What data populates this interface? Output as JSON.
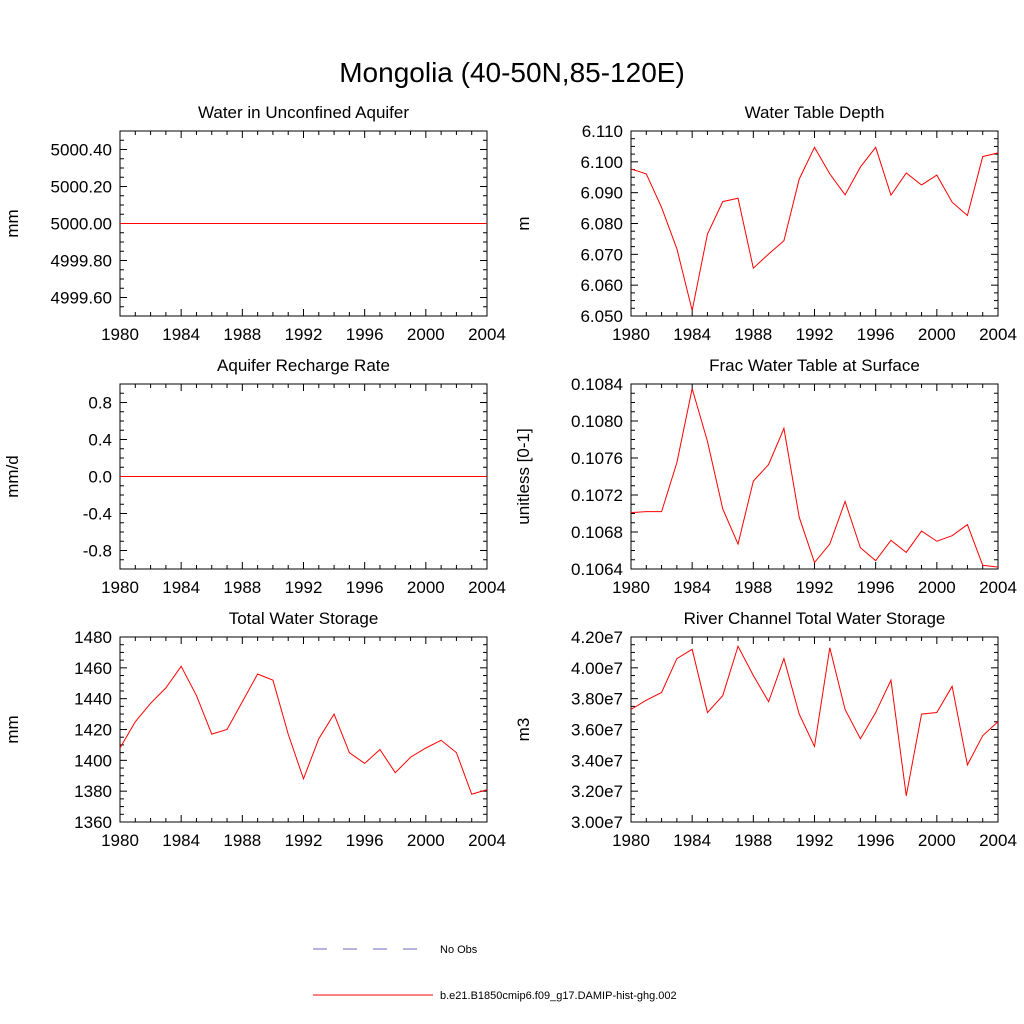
{
  "page_title": "Mongolia (40-50N,85-120E)",
  "legend": {
    "placement": "bottom-center",
    "entries": [
      {
        "label": "No Obs",
        "color": "#6c6cb8",
        "style": "dashed"
      },
      {
        "label": "b.e21.B1850cmip6.f09_g17.DAMIP-hist-ghg.002",
        "color": "#ff0000",
        "style": "solid"
      }
    ]
  },
  "chart_data": [
    {
      "type": "line",
      "title": "Water in Unconfined Aquifer",
      "xlabel": "",
      "ylabel": "mm",
      "xlim": [
        1980,
        2004
      ],
      "ylim": [
        4999.5,
        5000.5
      ],
      "xticks": [
        "1980",
        "1984",
        "1988",
        "1992",
        "1996",
        "2000",
        "2004"
      ],
      "yticks": [
        {
          "v": 4999.6,
          "label": "4999.60"
        },
        {
          "v": 4999.8,
          "label": "4999.80"
        },
        {
          "v": 5000.0,
          "label": "5000.00"
        },
        {
          "v": 5000.2,
          "label": "5000.20"
        },
        {
          "v": 5000.4,
          "label": "5000.40"
        }
      ],
      "x": [
        1980,
        1981,
        1982,
        1983,
        1984,
        1985,
        1986,
        1987,
        1988,
        1989,
        1990,
        1991,
        1992,
        1993,
        1994,
        1995,
        1996,
        1997,
        1998,
        1999,
        2000,
        2001,
        2002,
        2003,
        2004
      ],
      "series": [
        {
          "color": "#ff0000",
          "values": [
            5000,
            5000,
            5000,
            5000,
            5000,
            5000,
            5000,
            5000,
            5000,
            5000,
            5000,
            5000,
            5000,
            5000,
            5000,
            5000,
            5000,
            5000,
            5000,
            5000,
            5000,
            5000,
            5000,
            5000,
            5000
          ]
        }
      ]
    },
    {
      "type": "line",
      "title": "Water Table Depth",
      "xlabel": "",
      "ylabel": "m",
      "xlim": [
        1980,
        2004
      ],
      "ylim": [
        6.05,
        6.11
      ],
      "xticks": [
        "1980",
        "1984",
        "1988",
        "1992",
        "1996",
        "2000",
        "2004"
      ],
      "yticks": [
        {
          "v": 6.05,
          "label": "6.050"
        },
        {
          "v": 6.06,
          "label": "6.060"
        },
        {
          "v": 6.07,
          "label": "6.070"
        },
        {
          "v": 6.08,
          "label": "6.080"
        },
        {
          "v": 6.09,
          "label": "6.090"
        },
        {
          "v": 6.1,
          "label": "6.100"
        },
        {
          "v": 6.11,
          "label": "6.110"
        }
      ],
      "x": [
        1980,
        1981,
        1982,
        1983,
        1984,
        1985,
        1986,
        1987,
        1988,
        1989,
        1990,
        1991,
        1992,
        1993,
        1994,
        1995,
        1996,
        1997,
        1998,
        1999,
        2000,
        2001,
        2002,
        2003,
        2004
      ],
      "series": [
        {
          "color": "#ff0000",
          "values": [
            6.0977,
            6.0961,
            6.0852,
            6.0718,
            6.0518,
            6.0766,
            6.0871,
            6.0882,
            6.0655,
            6.0701,
            6.0744,
            6.0944,
            6.1047,
            6.0961,
            6.0893,
            6.0983,
            6.1047,
            6.0892,
            6.0964,
            6.0925,
            6.0957,
            6.0869,
            6.0826,
            6.1017,
            6.1029
          ]
        }
      ]
    },
    {
      "type": "line",
      "title": "Aquifer Recharge Rate",
      "xlabel": "",
      "ylabel": "mm/d",
      "xlim": [
        1980,
        2004
      ],
      "ylim": [
        -1.0,
        1.0
      ],
      "xticks": [
        "1980",
        "1984",
        "1988",
        "1992",
        "1996",
        "2000",
        "2004"
      ],
      "yticks": [
        {
          "v": -0.8,
          "label": "-0.8"
        },
        {
          "v": -0.4,
          "label": "-0.4"
        },
        {
          "v": 0.0,
          "label": "0.0"
        },
        {
          "v": 0.4,
          "label": "0.4"
        },
        {
          "v": 0.8,
          "label": "0.8"
        }
      ],
      "x": [
        1980,
        1981,
        1982,
        1983,
        1984,
        1985,
        1986,
        1987,
        1988,
        1989,
        1990,
        1991,
        1992,
        1993,
        1994,
        1995,
        1996,
        1997,
        1998,
        1999,
        2000,
        2001,
        2002,
        2003,
        2004
      ],
      "series": [
        {
          "color": "#ff0000",
          "values": [
            0,
            0,
            0,
            0,
            0,
            0,
            0,
            0,
            0,
            0,
            0,
            0,
            0,
            0,
            0,
            0,
            0,
            0,
            0,
            0,
            0,
            0,
            0,
            0,
            0
          ]
        }
      ]
    },
    {
      "type": "line",
      "title": "Frac Water Table at Surface",
      "xlabel": "",
      "ylabel": "unitless [0-1]",
      "xlim": [
        1980,
        2004
      ],
      "ylim": [
        0.1064,
        0.1084
      ],
      "xticks": [
        "1980",
        "1984",
        "1988",
        "1992",
        "1996",
        "2000",
        "2004"
      ],
      "yticks": [
        {
          "v": 0.1064,
          "label": "0.1064"
        },
        {
          "v": 0.1068,
          "label": "0.1068"
        },
        {
          "v": 0.1072,
          "label": "0.1072"
        },
        {
          "v": 0.1076,
          "label": "0.1076"
        },
        {
          "v": 0.108,
          "label": "0.1080"
        },
        {
          "v": 0.1084,
          "label": "0.1084"
        }
      ],
      "x": [
        1980,
        1981,
        1982,
        1983,
        1984,
        1985,
        1986,
        1987,
        1988,
        1989,
        1990,
        1991,
        1992,
        1993,
        1994,
        1995,
        1996,
        1997,
        1998,
        1999,
        2000,
        2001,
        2002,
        2003,
        2004
      ],
      "series": [
        {
          "color": "#ff0000",
          "values": [
            0.10701,
            0.10702,
            0.10702,
            0.10755,
            0.10835,
            0.10778,
            0.10705,
            0.10667,
            0.10735,
            0.10753,
            0.10792,
            0.10696,
            0.10647,
            0.10667,
            0.10713,
            0.10663,
            0.10649,
            0.10671,
            0.10658,
            0.10681,
            0.1067,
            0.10676,
            0.10688,
            0.10644,
            0.10642
          ]
        }
      ]
    },
    {
      "type": "line",
      "title": "Total Water Storage",
      "xlabel": "",
      "ylabel": "mm",
      "xlim": [
        1980,
        2004
      ],
      "ylim": [
        1360,
        1480
      ],
      "xticks": [
        "1980",
        "1984",
        "1988",
        "1992",
        "1996",
        "2000",
        "2004"
      ],
      "yticks": [
        {
          "v": 1360,
          "label": "1360"
        },
        {
          "v": 1380,
          "label": "1380"
        },
        {
          "v": 1400,
          "label": "1400"
        },
        {
          "v": 1420,
          "label": "1420"
        },
        {
          "v": 1440,
          "label": "1440"
        },
        {
          "v": 1460,
          "label": "1460"
        },
        {
          "v": 1480,
          "label": "1480"
        }
      ],
      "x": [
        1980,
        1981,
        1982,
        1983,
        1984,
        1985,
        1986,
        1987,
        1988,
        1989,
        1990,
        1991,
        1992,
        1993,
        1994,
        1995,
        1996,
        1997,
        1998,
        1999,
        2000,
        2001,
        2002,
        2003,
        2004
      ],
      "series": [
        {
          "color": "#ff0000",
          "values": [
            1408,
            1425,
            1437,
            1447,
            1461,
            1442,
            1417,
            1420,
            1438,
            1456,
            1452,
            1417,
            1388,
            1414,
            1430,
            1405,
            1398,
            1407,
            1392,
            1402,
            1408,
            1413,
            1405,
            1378,
            1381
          ]
        }
      ]
    },
    {
      "type": "line",
      "title": "River Channel Total Water Storage",
      "xlabel": "",
      "ylabel": "m3",
      "xlim": [
        1980,
        2004
      ],
      "ylim": [
        30000000,
        42000000
      ],
      "xticks": [
        "1980",
        "1984",
        "1988",
        "1992",
        "1996",
        "2000",
        "2004"
      ],
      "yticks": [
        {
          "v": 30000000,
          "label": "3.00e7"
        },
        {
          "v": 32000000,
          "label": "3.20e7"
        },
        {
          "v": 34000000,
          "label": "3.40e7"
        },
        {
          "v": 36000000,
          "label": "3.60e7"
        },
        {
          "v": 38000000,
          "label": "3.80e7"
        },
        {
          "v": 40000000,
          "label": "4.00e7"
        },
        {
          "v": 42000000,
          "label": "4.20e7"
        }
      ],
      "x": [
        1980,
        1981,
        1982,
        1983,
        1984,
        1985,
        1986,
        1987,
        1988,
        1989,
        1990,
        1991,
        1992,
        1993,
        1994,
        1995,
        1996,
        1997,
        1998,
        1999,
        2000,
        2001,
        2002,
        2003,
        2004
      ],
      "series": [
        {
          "color": "#ff0000",
          "values": [
            37300000,
            37900000,
            38400000,
            40600000,
            41200000,
            37100000,
            38200000,
            41400000,
            39500000,
            37800000,
            40600000,
            37000000,
            34900000,
            41300000,
            37300000,
            35400000,
            37100000,
            39200000,
            31700000,
            37000000,
            37100000,
            38800000,
            33700000,
            35600000,
            36500000
          ]
        }
      ]
    }
  ]
}
